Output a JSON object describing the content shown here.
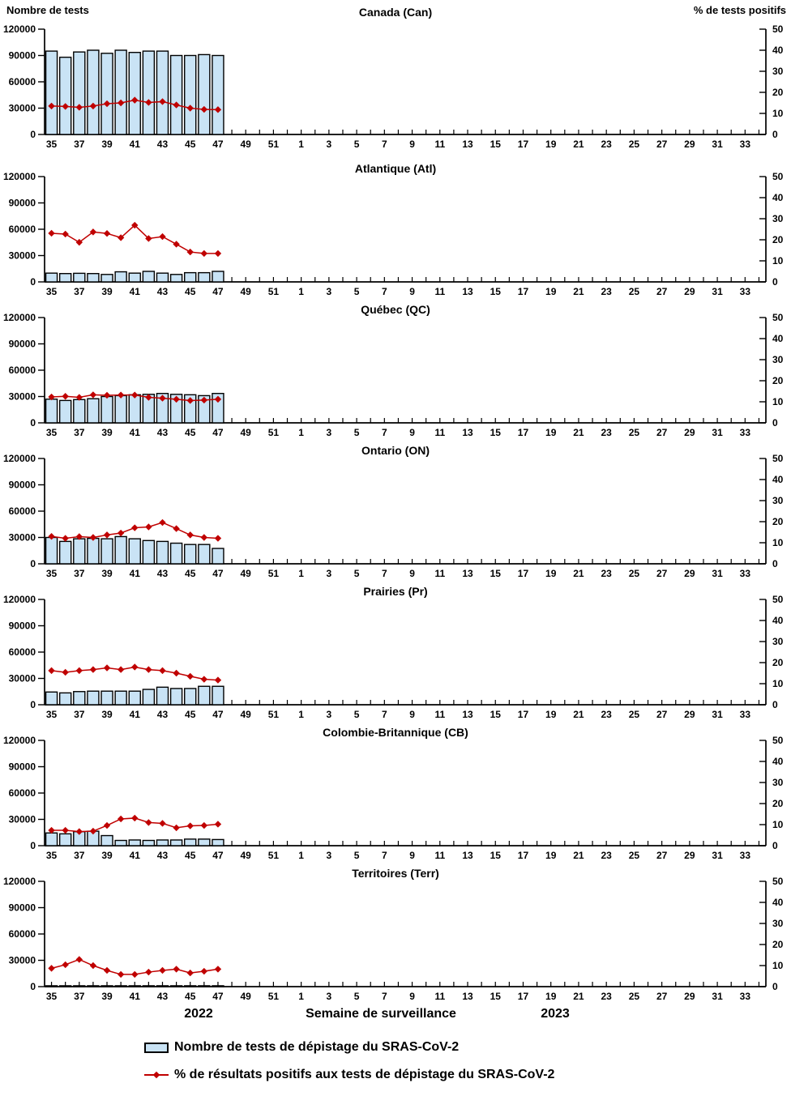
{
  "header": {
    "left_axis_label": "Nombre de tests",
    "right_axis_label": "% de tests positifs"
  },
  "footer": {
    "year_left": "2022",
    "x_axis_label": "Semaine de surveillance",
    "year_right": "2023"
  },
  "legend": {
    "bar_label": "Nombre de tests de dépistage du SRAS-CoV-2",
    "line_label": "% de résultats positifs aux tests de dépistage du SRAS-CoV-2"
  },
  "colors": {
    "bar_fill": "#C9E3F5",
    "bar_stroke": "#000000",
    "line": "#C00000",
    "axis": "#000000"
  },
  "axes": {
    "left_ticks": [
      0,
      30000,
      60000,
      90000,
      120000
    ],
    "left_ylim": [
      0,
      120000
    ],
    "right_ticks": [
      0,
      10,
      20,
      30,
      40,
      50
    ],
    "right_ylim": [
      0,
      50
    ],
    "week_sequence": [
      35,
      36,
      37,
      38,
      39,
      40,
      41,
      42,
      43,
      44,
      45,
      46,
      47,
      48,
      49,
      50,
      51,
      52,
      1,
      2,
      3,
      4,
      5,
      6,
      7,
      8,
      9,
      10,
      11,
      12,
      13,
      14,
      15,
      16,
      17,
      18,
      19,
      20,
      21,
      22,
      23,
      24,
      25,
      26,
      27,
      28,
      29,
      30,
      31,
      32,
      33,
      34
    ],
    "labeled_weeks": [
      35,
      37,
      39,
      41,
      43,
      45,
      47,
      49,
      51,
      1,
      3,
      5,
      7,
      9,
      11,
      13,
      15,
      17,
      19,
      21,
      23,
      25,
      27,
      29,
      31,
      33
    ]
  },
  "chart_data": [
    {
      "type": "bar+line",
      "title": "Canada (Can)",
      "x": [
        35,
        36,
        37,
        38,
        39,
        40,
        41,
        42,
        43,
        44,
        45,
        46,
        47
      ],
      "series": [
        {
          "name": "Nombre de tests",
          "type": "bar",
          "axis": "left",
          "values": [
            95000,
            88000,
            94000,
            96000,
            92500,
            96000,
            93500,
            95000,
            95000,
            90000,
            90000,
            91000,
            90000
          ]
        },
        {
          "name": "% de tests positifs",
          "type": "line",
          "axis": "right",
          "values": [
            13.5,
            13.3,
            12.9,
            13.5,
            14.6,
            15.0,
            16.3,
            15.2,
            15.6,
            14.0,
            12.5,
            11.9,
            11.8
          ]
        }
      ],
      "left_ylim": [
        0,
        120000
      ],
      "right_ylim": [
        0,
        50
      ]
    },
    {
      "type": "bar+line",
      "title": "Atlantique (Atl)",
      "x": [
        35,
        36,
        37,
        38,
        39,
        40,
        41,
        42,
        43,
        44,
        45,
        46,
        47
      ],
      "series": [
        {
          "name": "Nombre de tests",
          "type": "bar",
          "axis": "left",
          "values": [
            10000,
            9500,
            9800,
            9500,
            8500,
            11500,
            10000,
            12000,
            10000,
            8500,
            10500,
            10500,
            12000
          ]
        },
        {
          "name": "% de tests positifs",
          "type": "line",
          "axis": "right",
          "values": [
            23.1,
            22.7,
            18.8,
            23.7,
            23.0,
            21.0,
            26.9,
            20.6,
            21.5,
            17.9,
            14.2,
            13.5,
            13.5
          ]
        }
      ],
      "left_ylim": [
        0,
        120000
      ],
      "right_ylim": [
        0,
        50
      ]
    },
    {
      "type": "bar+line",
      "title": "Québec (QC)",
      "x": [
        35,
        36,
        37,
        38,
        39,
        40,
        41,
        42,
        43,
        44,
        45,
        46,
        47
      ],
      "series": [
        {
          "name": "Nombre de tests",
          "type": "bar",
          "axis": "left",
          "values": [
            27000,
            25500,
            26500,
            27500,
            30000,
            31000,
            32000,
            32500,
            33500,
            32500,
            32000,
            31000,
            33500
          ]
        },
        {
          "name": "% de tests positifs",
          "type": "line",
          "axis": "right",
          "values": [
            12.3,
            12.6,
            12.1,
            13.3,
            13.1,
            13.2,
            13.2,
            12.1,
            11.7,
            11.2,
            10.6,
            10.8,
            11.2
          ]
        }
      ],
      "left_ylim": [
        0,
        120000
      ],
      "right_ylim": [
        0,
        50
      ]
    },
    {
      "type": "bar+line",
      "title": "Ontario (ON)",
      "x": [
        35,
        36,
        37,
        38,
        39,
        40,
        41,
        42,
        43,
        44,
        45,
        46,
        47
      ],
      "series": [
        {
          "name": "Nombre de tests",
          "type": "bar",
          "axis": "left",
          "values": [
            30000,
            25500,
            28500,
            29000,
            28500,
            31000,
            28500,
            26500,
            25500,
            23500,
            22000,
            22000,
            17500
          ]
        },
        {
          "name": "% de tests positifs",
          "type": "line",
          "axis": "right",
          "values": [
            13.0,
            12.1,
            12.9,
            12.5,
            13.7,
            14.6,
            17.1,
            17.5,
            19.6,
            16.7,
            13.7,
            12.5,
            12.1
          ]
        }
      ],
      "left_ylim": [
        0,
        120000
      ],
      "right_ylim": [
        0,
        50
      ]
    },
    {
      "type": "bar+line",
      "title": "Prairies (Pr)",
      "x": [
        35,
        36,
        37,
        38,
        39,
        40,
        41,
        42,
        43,
        44,
        45,
        46,
        47
      ],
      "series": [
        {
          "name": "Nombre de tests",
          "type": "bar",
          "axis": "left",
          "values": [
            14500,
            13500,
            15000,
            15500,
            15500,
            15500,
            15500,
            17500,
            20000,
            18500,
            18500,
            21000,
            21000
          ]
        },
        {
          "name": "% de tests positifs",
          "type": "line",
          "axis": "right",
          "values": [
            16.2,
            15.4,
            16.2,
            16.7,
            17.5,
            16.7,
            17.9,
            16.7,
            16.2,
            15.0,
            13.5,
            12.1,
            11.7
          ]
        }
      ],
      "left_ylim": [
        0,
        120000
      ],
      "right_ylim": [
        0,
        50
      ]
    },
    {
      "type": "bar+line",
      "title": "Colombie-Britannique (CB)",
      "x": [
        35,
        36,
        37,
        38,
        39,
        40,
        41,
        42,
        43,
        44,
        45,
        46,
        47
      ],
      "series": [
        {
          "name": "Nombre de tests",
          "type": "bar",
          "axis": "left",
          "values": [
            14500,
            13500,
            16000,
            16500,
            11500,
            6000,
            6500,
            6000,
            6500,
            6500,
            7500,
            7500,
            7000
          ]
        },
        {
          "name": "% de tests positifs",
          "type": "line",
          "axis": "right",
          "values": [
            7.3,
            7.3,
            6.7,
            6.9,
            9.6,
            12.7,
            13.1,
            11.0,
            10.6,
            8.5,
            9.4,
            9.6,
            10.2
          ]
        }
      ],
      "left_ylim": [
        0,
        120000
      ],
      "right_ylim": [
        0,
        50
      ]
    },
    {
      "type": "bar+line",
      "title": "Territoires (Terr)",
      "x": [
        35,
        36,
        37,
        38,
        39,
        40,
        41,
        42,
        43,
        44,
        45,
        46,
        47
      ],
      "series": [
        {
          "name": "Nombre de tests",
          "type": "bar",
          "axis": "left",
          "values": [
            1000,
            1000,
            1000,
            1000,
            1000,
            1000,
            1000,
            1000,
            1000,
            1000,
            1000,
            1000,
            1000
          ]
        },
        {
          "name": "% de tests positifs",
          "type": "line",
          "axis": "right",
          "values": [
            8.7,
            10.4,
            12.9,
            10.0,
            7.7,
            5.8,
            5.8,
            6.9,
            7.7,
            8.3,
            6.5,
            7.3,
            8.3
          ]
        }
      ],
      "left_ylim": [
        0,
        120000
      ],
      "right_ylim": [
        0,
        50
      ]
    }
  ]
}
